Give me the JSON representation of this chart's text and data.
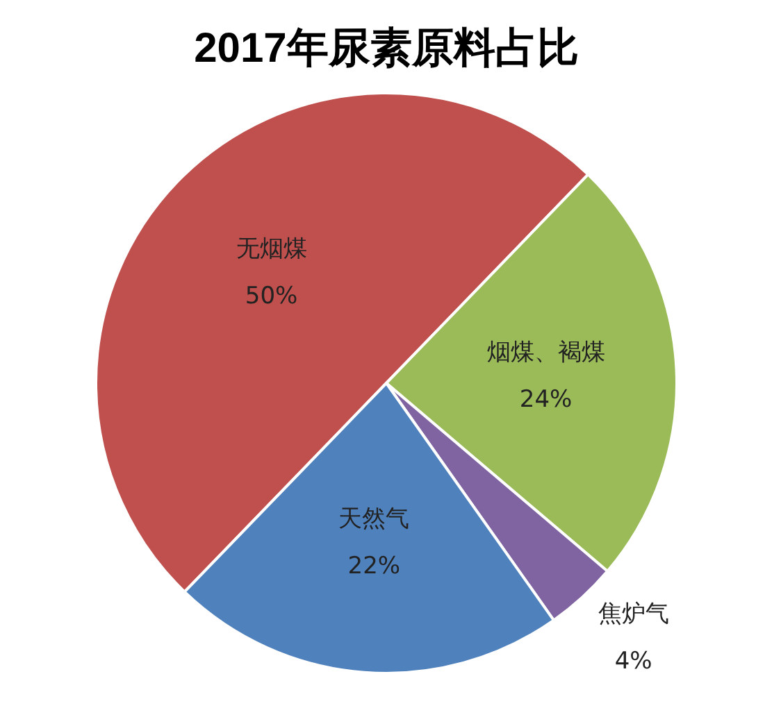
{
  "chart_data": {
    "type": "pie",
    "title": "2017年尿素原料占比",
    "categories": [
      "无烟煤",
      "烟煤、褐煤",
      "焦炉气",
      "天然气"
    ],
    "values": [
      50,
      24,
      4,
      22
    ],
    "value_labels": [
      "50%",
      "24%",
      "4%",
      "22%"
    ],
    "colors": [
      "#c0504d",
      "#9bbb59",
      "#8064a2",
      "#4f81bd"
    ],
    "legend": false
  }
}
